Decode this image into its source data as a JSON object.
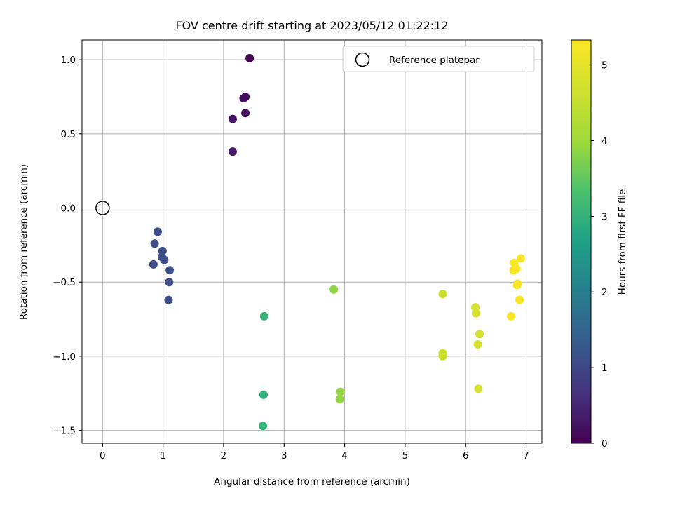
{
  "chart_data": {
    "type": "scatter",
    "title": "FOV centre drift starting at 2023/05/12 01:22:12",
    "xlabel": "Angular distance from reference (arcmin)",
    "ylabel": "Rotation from reference (arcmin)",
    "xlim": [
      -0.34,
      7.26
    ],
    "ylim": [
      -1.587,
      1.133
    ],
    "xticks": [
      0,
      1,
      2,
      3,
      4,
      5,
      6,
      7
    ],
    "xtick_labels": [
      "0",
      "1",
      "2",
      "3",
      "4",
      "5",
      "6",
      "7"
    ],
    "yticks": [
      1.0,
      0.5,
      0.0,
      -0.5,
      -1.0,
      -1.5
    ],
    "ytick_labels": [
      "1.0",
      "0.5",
      "0.0",
      "−0.5",
      "−1.0",
      "−1.5"
    ],
    "grid": true,
    "legend": {
      "position": "upper right",
      "entries": [
        "Reference platepar"
      ]
    },
    "reference_point": {
      "x": 0.0,
      "y": 0.0,
      "marker": "open-circle"
    },
    "colorbar": {
      "label": "Hours from first FF file",
      "range": [
        0,
        5.33
      ],
      "ticks": [
        0,
        1,
        2,
        3,
        4,
        5
      ],
      "tick_labels": [
        "0",
        "1",
        "2",
        "3",
        "4",
        "5"
      ],
      "colormap": "viridis"
    },
    "points": [
      {
        "x": 2.43,
        "y": 1.01,
        "hours": 0.05
      },
      {
        "x": 2.36,
        "y": 0.75,
        "hours": 0.1
      },
      {
        "x": 2.33,
        "y": 0.74,
        "hours": 0.15
      },
      {
        "x": 2.36,
        "y": 0.64,
        "hours": 0.2
      },
      {
        "x": 2.15,
        "y": 0.6,
        "hours": 0.25
      },
      {
        "x": 2.15,
        "y": 0.38,
        "hours": 0.3
      },
      {
        "x": 0.91,
        "y": -0.16,
        "hours": 1.1
      },
      {
        "x": 0.86,
        "y": -0.24,
        "hours": 1.1
      },
      {
        "x": 0.99,
        "y": -0.29,
        "hours": 1.1
      },
      {
        "x": 0.98,
        "y": -0.33,
        "hours": 1.1
      },
      {
        "x": 1.02,
        "y": -0.35,
        "hours": 1.1
      },
      {
        "x": 0.84,
        "y": -0.38,
        "hours": 1.1
      },
      {
        "x": 1.11,
        "y": -0.42,
        "hours": 1.1
      },
      {
        "x": 1.1,
        "y": -0.5,
        "hours": 1.1
      },
      {
        "x": 1.09,
        "y": -0.62,
        "hours": 1.1
      },
      {
        "x": 2.67,
        "y": -0.73,
        "hours": 3.05
      },
      {
        "x": 2.66,
        "y": -1.26,
        "hours": 3.0
      },
      {
        "x": 2.65,
        "y": -1.47,
        "hours": 3.0
      },
      {
        "x": 3.82,
        "y": -0.55,
        "hours": 3.85
      },
      {
        "x": 3.93,
        "y": -1.24,
        "hours": 3.9
      },
      {
        "x": 3.92,
        "y": -1.29,
        "hours": 3.9
      },
      {
        "x": 5.62,
        "y": -0.58,
        "hours": 4.65
      },
      {
        "x": 5.62,
        "y": -0.98,
        "hours": 4.65
      },
      {
        "x": 5.62,
        "y": -1.0,
        "hours": 4.65
      },
      {
        "x": 6.16,
        "y": -0.67,
        "hours": 4.75
      },
      {
        "x": 6.17,
        "y": -0.71,
        "hours": 4.75
      },
      {
        "x": 6.23,
        "y": -0.85,
        "hours": 4.75
      },
      {
        "x": 6.2,
        "y": -0.92,
        "hours": 4.75
      },
      {
        "x": 6.21,
        "y": -1.22,
        "hours": 4.75
      },
      {
        "x": 6.91,
        "y": -0.34,
        "hours": 5.25
      },
      {
        "x": 6.8,
        "y": -0.37,
        "hours": 5.25
      },
      {
        "x": 6.84,
        "y": -0.41,
        "hours": 5.25
      },
      {
        "x": 6.79,
        "y": -0.42,
        "hours": 5.25
      },
      {
        "x": 6.86,
        "y": -0.51,
        "hours": 5.25
      },
      {
        "x": 6.85,
        "y": -0.52,
        "hours": 5.25
      },
      {
        "x": 6.89,
        "y": -0.62,
        "hours": 5.25
      },
      {
        "x": 6.75,
        "y": -0.73,
        "hours": 5.25
      }
    ]
  }
}
